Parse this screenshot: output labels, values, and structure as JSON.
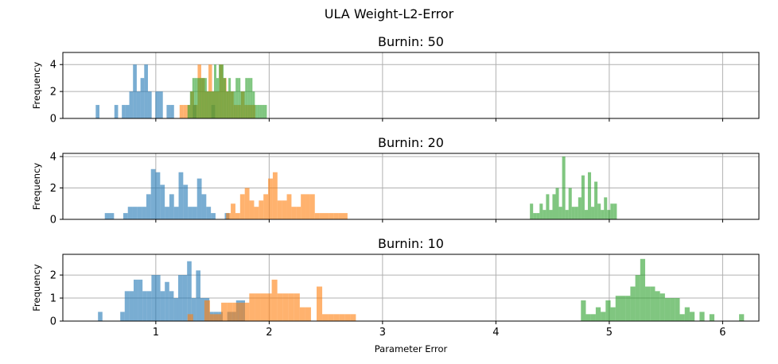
{
  "figure": {
    "suptitle": "ULA Weight-L2-Error"
  },
  "colors": {
    "series": [
      "#1f77b4",
      "#ff7f0e",
      "#2ca02c"
    ],
    "bar_alpha": 0.6,
    "grid": "#b0b0b0"
  },
  "chart_data": [
    {
      "type": "histogram",
      "title": "Burnin: 50",
      "xlabel": "",
      "ylabel": "Frequency",
      "xlim": [
        0.18,
        6.32
      ],
      "ylim": [
        0,
        4.9
      ],
      "xticks": [
        1,
        2,
        3,
        4,
        5,
        6
      ],
      "xtick_labels": [],
      "yticks": [
        0,
        2,
        4
      ],
      "ytick_labels": [
        "0",
        "2",
        "4"
      ],
      "grid": true,
      "series": [
        {
          "x_start": 0.47,
          "bin_width": 0.0329,
          "counts": [
            1,
            0,
            0,
            0,
            0,
            1,
            0,
            1,
            1,
            2,
            4,
            2,
            3,
            4,
            2,
            0,
            2,
            2,
            0,
            1,
            1,
            0,
            0,
            0,
            0,
            0,
            1,
            0,
            0,
            0,
            0,
            1
          ]
        },
        {
          "x_start": 1.21,
          "bin_width": 0.0318,
          "counts": [
            1,
            1,
            1,
            2,
            1,
            4,
            3,
            2,
            4,
            2,
            2,
            4,
            3,
            2,
            2,
            1,
            1,
            2,
            1,
            1,
            1
          ]
        },
        {
          "x_start": 1.28,
          "bin_width": 0.0212,
          "counts": [
            1,
            2,
            3,
            3,
            3,
            3,
            3,
            3,
            2,
            2,
            2,
            4,
            3,
            4,
            4,
            3,
            2,
            3,
            2,
            2,
            3,
            3,
            2,
            2,
            3,
            3,
            3,
            2,
            1,
            1,
            1,
            1,
            1
          ]
        }
      ]
    },
    {
      "type": "histogram",
      "title": "Burnin: 20",
      "xlabel": "",
      "ylabel": "Frequency",
      "xlim": [
        0.18,
        6.32
      ],
      "ylim": [
        0,
        4.2
      ],
      "xticks": [
        1,
        2,
        3,
        4,
        5,
        6
      ],
      "xtick_labels": [],
      "yticks": [
        0,
        2,
        4
      ],
      "ytick_labels": [
        "0",
        "2",
        "4"
      ],
      "grid": true,
      "series": [
        {
          "x_start": 0.55,
          "bin_width": 0.0407,
          "counts": [
            0.4,
            0.4,
            0,
            0,
            0.4,
            0.8,
            0.8,
            0.8,
            0.8,
            1.6,
            3.2,
            3.0,
            2.2,
            0.8,
            1.6,
            0.8,
            3.0,
            2.2,
            0.8,
            0.8,
            2.6,
            1.6,
            0.8,
            0.4,
            0,
            0,
            0.4
          ]
        },
        {
          "x_start": 1.62,
          "bin_width": 0.0412,
          "counts": [
            0.4,
            1.0,
            0.4,
            1.6,
            2.0,
            1.2,
            0.8,
            1.2,
            1.6,
            2.6,
            3.0,
            1.2,
            1.2,
            1.6,
            0.8,
            0.8,
            1.6,
            1.6,
            1.6,
            0.4,
            0.4,
            0.4,
            0.4,
            0.4,
            0.4,
            0.4
          ]
        },
        {
          "x_start": 4.3,
          "bin_width": 0.0284,
          "counts": [
            1.0,
            0.4,
            0.4,
            1.0,
            0.6,
            1.6,
            0.6,
            1.6,
            2.0,
            0.8,
            4.0,
            0.6,
            2.0,
            0.8,
            0.8,
            1.4,
            2.8,
            0.6,
            3.0,
            0.8,
            2.4,
            1.0,
            0.6,
            1.4,
            0.6,
            1.0,
            1.0
          ]
        }
      ]
    },
    {
      "type": "histogram",
      "title": "Burnin: 10",
      "xlabel": "Parameter Error",
      "ylabel": "Frequency",
      "xlim": [
        0.18,
        6.32
      ],
      "ylim": [
        0,
        2.9
      ],
      "xticks": [
        1,
        2,
        3,
        4,
        5,
        6
      ],
      "xtick_labels": [
        "1",
        "2",
        "3",
        "4",
        "5",
        "6"
      ],
      "yticks": [
        0,
        1,
        2
      ],
      "ytick_labels": [
        "0",
        "1",
        "2"
      ],
      "grid": true,
      "series": [
        {
          "x_start": 0.49,
          "bin_width": 0.0393,
          "counts": [
            0.4,
            0,
            0,
            0,
            0,
            0.4,
            1.3,
            1.3,
            1.8,
            1.8,
            1.3,
            1.3,
            2.0,
            2.0,
            1.3,
            1.7,
            1.3,
            1.0,
            2.0,
            2.0,
            2.6,
            1.0,
            2.2,
            1.0,
            1.0,
            0.4,
            0.4,
            0.4,
            0,
            0.4,
            0.4,
            0.9,
            0.9
          ]
        },
        {
          "x_start": 1.28,
          "bin_width": 0.0495,
          "counts": [
            0.3,
            0,
            0,
            0.9,
            0.3,
            0.3,
            0.8,
            0.8,
            0.8,
            0.8,
            0.8,
            1.2,
            1.2,
            1.2,
            1.2,
            1.8,
            1.2,
            1.2,
            1.2,
            1.2,
            0.6,
            0.6,
            0,
            1.5,
            0.3,
            0.3,
            0.3,
            0.3,
            0.3,
            0.3
          ]
        },
        {
          "x_start": 4.75,
          "bin_width": 0.0436,
          "counts": [
            0.9,
            0.3,
            0.3,
            0.6,
            0.4,
            0.9,
            0.6,
            1.1,
            1.1,
            1.1,
            1.5,
            2.0,
            2.7,
            1.5,
            1.5,
            1.3,
            1.2,
            1.0,
            1.0,
            1.0,
            0.3,
            0.6,
            0.4,
            0,
            0.4,
            0,
            0.3,
            0,
            0,
            0,
            0,
            0,
            0.3
          ]
        }
      ]
    }
  ]
}
